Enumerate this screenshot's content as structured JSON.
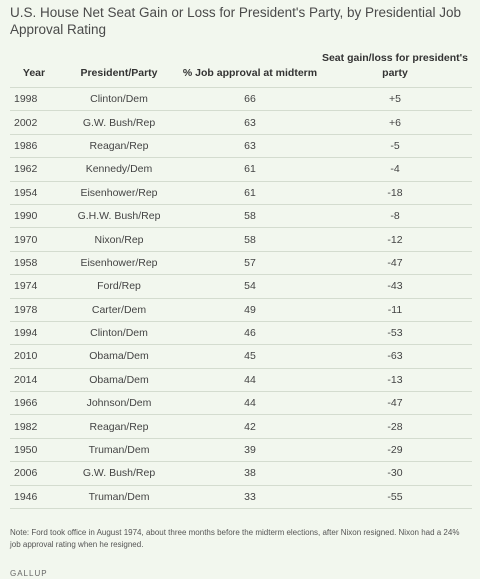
{
  "title": "U.S. House Net Seat Gain or Loss for President's Party, by Presidential Job Approval Rating",
  "chart_data": {
    "type": "table",
    "columns": [
      "Year",
      "President/Party",
      "% Job approval at midterm",
      "Seat gain/loss for president's party"
    ],
    "rows": [
      [
        "1998",
        "Clinton/Dem",
        "66",
        "+5"
      ],
      [
        "2002",
        "G.W. Bush/Rep",
        "63",
        "+6"
      ],
      [
        "1986",
        "Reagan/Rep",
        "63",
        "-5"
      ],
      [
        "1962",
        "Kennedy/Dem",
        "61",
        "-4"
      ],
      [
        "1954",
        "Eisenhower/Rep",
        "61",
        "-18"
      ],
      [
        "1990",
        "G.H.W. Bush/Rep",
        "58",
        "-8"
      ],
      [
        "1970",
        "Nixon/Rep",
        "58",
        "-12"
      ],
      [
        "1958",
        "Eisenhower/Rep",
        "57",
        "-47"
      ],
      [
        "1974",
        "Ford/Rep",
        "54",
        "-43"
      ],
      [
        "1978",
        "Carter/Dem",
        "49",
        "-11"
      ],
      [
        "1994",
        "Clinton/Dem",
        "46",
        "-53"
      ],
      [
        "2010",
        "Obama/Dem",
        "45",
        "-63"
      ],
      [
        "2014",
        "Obama/Dem",
        "44",
        "-13"
      ],
      [
        "1966",
        "Johnson/Dem",
        "44",
        "-47"
      ],
      [
        "1982",
        "Reagan/Rep",
        "42",
        "-28"
      ],
      [
        "1950",
        "Truman/Dem",
        "39",
        "-29"
      ],
      [
        "2006",
        "G.W. Bush/Rep",
        "38",
        "-30"
      ],
      [
        "1946",
        "Truman/Dem",
        "33",
        "-55"
      ]
    ]
  },
  "note": "Note: Ford took office in August 1974, about three months before the midterm elections, after Nixon resigned. Nixon had a 24% job approval rating when he resigned.",
  "brand": "GALLUP",
  "colors": {
    "background": "#f2f7ee",
    "rule": "#d4dccf",
    "text": "#333333"
  }
}
